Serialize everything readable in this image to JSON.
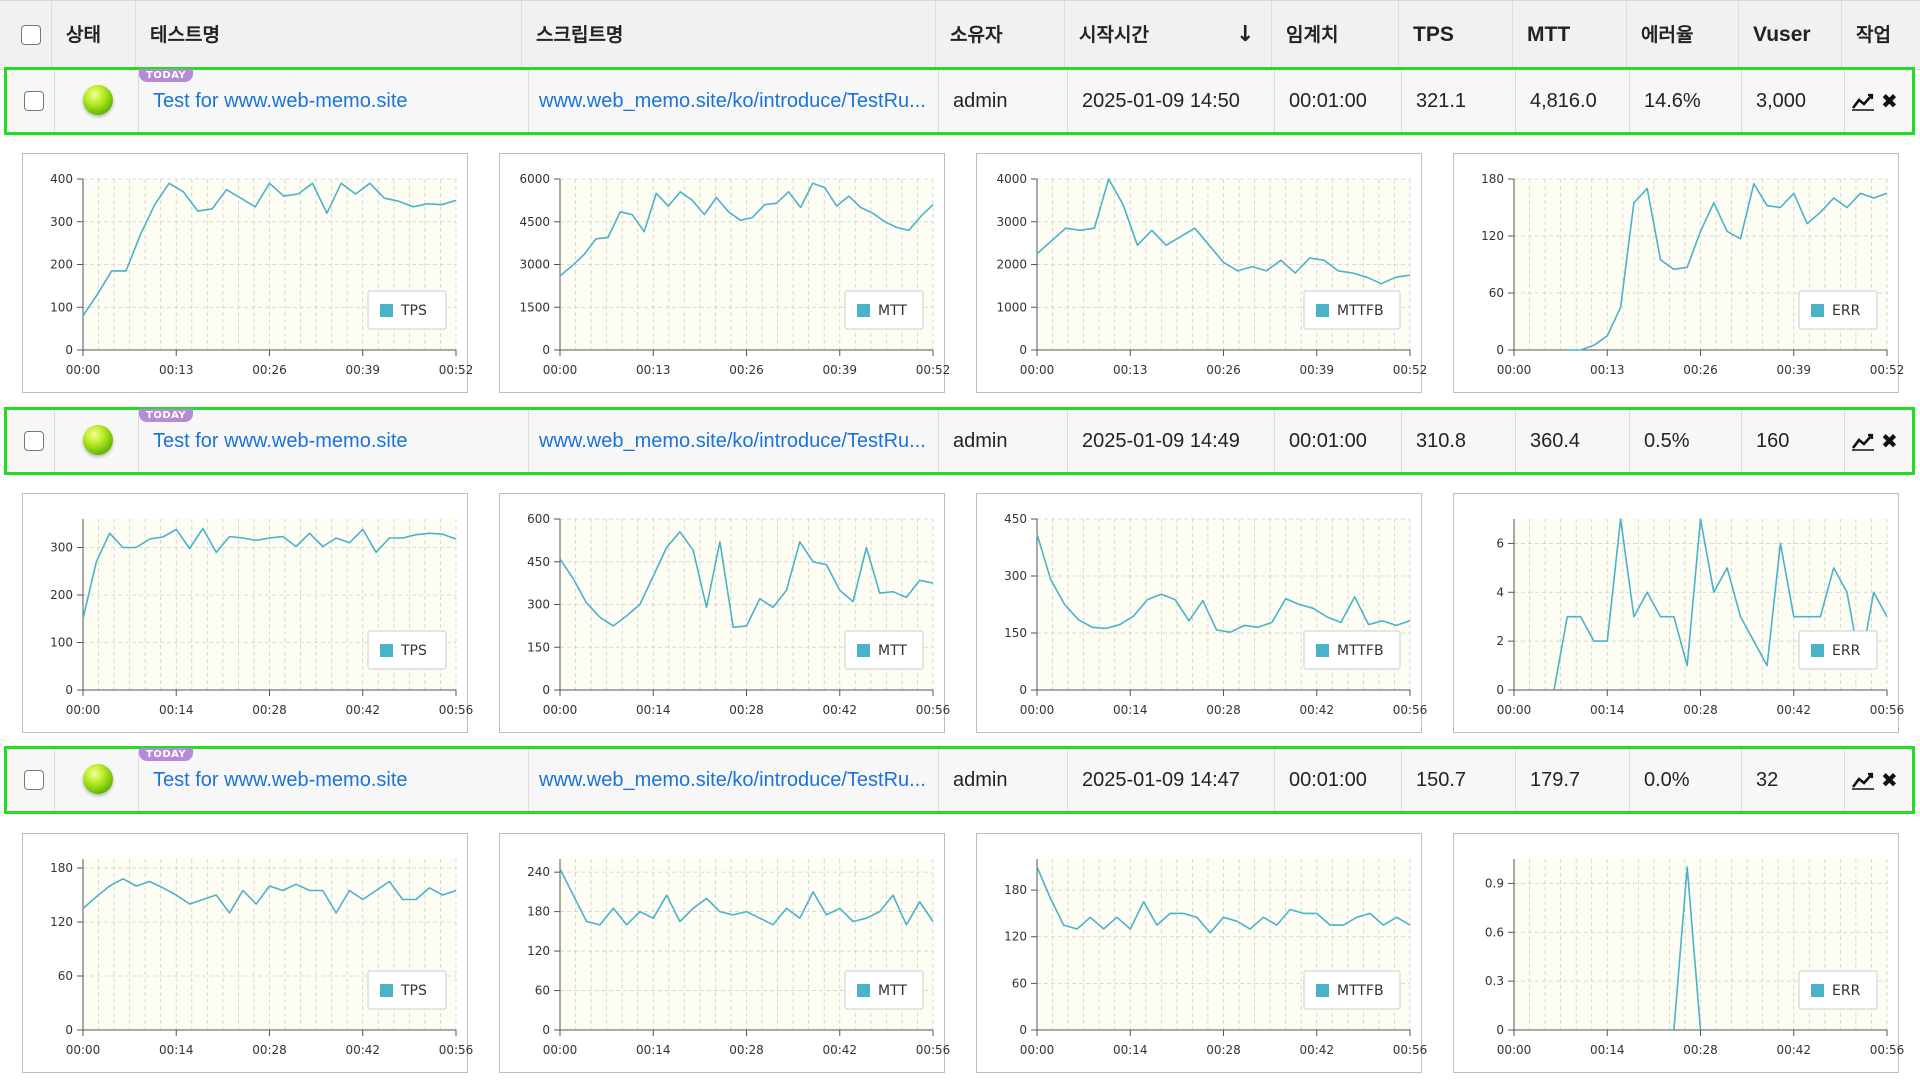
{
  "header": {
    "status": "상태",
    "test_name": "테스트명",
    "script_name": "스크립트명",
    "owner": "소유자",
    "start_time": "시작시간",
    "threshold": "임계치",
    "tps": "TPS",
    "mtt": "MTT",
    "error_rate": "에러율",
    "vuser": "Vuser",
    "action": "작업"
  },
  "icons": {
    "sort": "sort-desc-arrow-icon",
    "chart": "line-chart-icon",
    "delete": "close-x-icon",
    "status": "status-ball-green-icon"
  },
  "colors": {
    "highlight": "#22dd22",
    "link": "#1a73d9",
    "series": "#4ab3c8",
    "today_badge": "#b58ad6"
  },
  "rows": [
    {
      "badge": "TODAY",
      "test_name": "Test for www.web-memo.site",
      "script_name": "www.web_memo.site/ko/introduce/TestRu...",
      "owner": "admin",
      "start_time": "2025-01-09 14:50",
      "threshold": "00:01:00",
      "tps": "321.1",
      "mtt": "4,816.0",
      "error_rate": "14.6%",
      "vuser": "3,000"
    },
    {
      "badge": "TODAY",
      "test_name": "Test for www.web-memo.site",
      "script_name": "www.web_memo.site/ko/introduce/TestRu...",
      "owner": "admin",
      "start_time": "2025-01-09 14:49",
      "threshold": "00:01:00",
      "tps": "310.8",
      "mtt": "360.4",
      "error_rate": "0.5%",
      "vuser": "160"
    },
    {
      "badge": "TODAY",
      "test_name": "Test for www.web-memo.site",
      "script_name": "www.web_memo.site/ko/introduce/TestRu...",
      "owner": "admin",
      "start_time": "2025-01-09 14:47",
      "threshold": "00:01:00",
      "tps": "150.7",
      "mtt": "179.7",
      "error_rate": "0.0%",
      "vuser": "32"
    }
  ],
  "chart_data": [
    {
      "type": "line",
      "series": [
        {
          "name": "TPS",
          "values": [
            80,
            130,
            185,
            185,
            270,
            340,
            390,
            370,
            325,
            330,
            375,
            355,
            335,
            390,
            360,
            365,
            390,
            320,
            390,
            365,
            390,
            355,
            348,
            335,
            342,
            340,
            350
          ]
        }
      ],
      "xticks": [
        "00:00",
        "00:13",
        "00:26",
        "00:39",
        "00:52"
      ],
      "ylim": [
        0,
        400
      ],
      "yticks": [
        "0",
        "100",
        "200",
        "300",
        "400"
      ]
    },
    {
      "type": "line",
      "series": [
        {
          "name": "MTT",
          "values": [
            2600,
            2950,
            3350,
            3900,
            3950,
            4850,
            4750,
            4150,
            5500,
            5050,
            5550,
            5250,
            4750,
            5350,
            4850,
            4550,
            4650,
            5100,
            5150,
            5550,
            5000,
            5850,
            5700,
            5050,
            5400,
            5000,
            4800,
            4500,
            4300,
            4200,
            4700,
            5100
          ]
        }
      ],
      "xticks": [
        "00:00",
        "00:13",
        "00:26",
        "00:39",
        "00:52"
      ],
      "ylim": [
        0,
        6000
      ],
      "yticks": [
        "0",
        "1500",
        "3000",
        "4500",
        "6000"
      ]
    },
    {
      "type": "line",
      "series": [
        {
          "name": "MTTFB",
          "values": [
            2250,
            2550,
            2850,
            2800,
            2850,
            4000,
            3400,
            2450,
            2800,
            2450,
            2650,
            2850,
            2450,
            2050,
            1850,
            1950,
            1850,
            2100,
            1800,
            2150,
            2100,
            1850,
            1800,
            1700,
            1550,
            1700,
            1750
          ]
        }
      ],
      "xticks": [
        "00:00",
        "00:13",
        "00:26",
        "00:39",
        "00:52"
      ],
      "ylim": [
        0,
        4000
      ],
      "yticks": [
        "0",
        "1000",
        "2000",
        "3000",
        "4000"
      ]
    },
    {
      "type": "line",
      "series": [
        {
          "name": "ERR",
          "values": [
            null,
            null,
            null,
            null,
            0,
            0,
            5,
            15,
            45,
            155,
            170,
            95,
            85,
            87,
            125,
            155,
            125,
            117,
            175,
            152,
            150,
            165,
            133,
            145,
            160,
            150,
            165,
            160,
            165
          ]
        }
      ],
      "xticks": [
        "00:00",
        "00:13",
        "00:26",
        "00:39",
        "00:52"
      ],
      "ylim": [
        0,
        180
      ],
      "yticks": [
        "0",
        "60",
        "120",
        "180"
      ]
    },
    {
      "type": "line",
      "series": [
        {
          "name": "TPS",
          "values": [
            150,
            270,
            330,
            300,
            300,
            318,
            322,
            338,
            298,
            340,
            290,
            323,
            320,
            315,
            320,
            323,
            302,
            330,
            302,
            320,
            310,
            338,
            290,
            320,
            320,
            327,
            330,
            328,
            318
          ]
        }
      ],
      "xticks": [
        "00:00",
        "00:14",
        "00:28",
        "00:42",
        "00:56"
      ],
      "ylim": [
        0,
        360
      ],
      "yticks": [
        "0",
        "100",
        "200",
        "300"
      ]
    },
    {
      "type": "line",
      "series": [
        {
          "name": "MTT",
          "values": [
            460,
            390,
            305,
            255,
            225,
            260,
            300,
            400,
            500,
            555,
            490,
            290,
            520,
            220,
            225,
            320,
            290,
            350,
            520,
            450,
            440,
            350,
            310,
            500,
            340,
            345,
            325,
            385,
            375
          ]
        }
      ],
      "xticks": [
        "00:00",
        "00:14",
        "00:28",
        "00:42",
        "00:56"
      ],
      "ylim": [
        0,
        600
      ],
      "yticks": [
        "0",
        "150",
        "300",
        "450",
        "600"
      ]
    },
    {
      "type": "line",
      "series": [
        {
          "name": "MTTFB",
          "values": [
            410,
            290,
            225,
            185,
            165,
            162,
            172,
            195,
            238,
            252,
            238,
            182,
            235,
            158,
            152,
            170,
            165,
            178,
            240,
            225,
            215,
            192,
            178,
            245,
            172,
            182,
            170,
            182
          ]
        }
      ],
      "xticks": [
        "00:00",
        "00:14",
        "00:28",
        "00:42",
        "00:56"
      ],
      "ylim": [
        0,
        450
      ],
      "yticks": [
        "0",
        "150",
        "300",
        "450"
      ]
    },
    {
      "type": "line",
      "series": [
        {
          "name": "ERR",
          "values": [
            null,
            null,
            null,
            0,
            3,
            3,
            2,
            2,
            7,
            3,
            4,
            3,
            3,
            1,
            7,
            4,
            5,
            3,
            2,
            1,
            6,
            3,
            3,
            3,
            5,
            4,
            1,
            4,
            3
          ]
        }
      ],
      "xticks": [
        "00:00",
        "00:14",
        "00:28",
        "00:42",
        "00:56"
      ],
      "ylim": [
        0,
        7
      ],
      "yticks": [
        "0",
        "2",
        "4",
        "6"
      ]
    },
    {
      "type": "line",
      "series": [
        {
          "name": "TPS",
          "values": [
            135,
            148,
            160,
            168,
            160,
            165,
            158,
            150,
            140,
            145,
            150,
            130,
            155,
            140,
            160,
            155,
            162,
            155,
            155,
            130,
            155,
            145,
            155,
            165,
            145,
            145,
            158,
            150,
            155
          ]
        }
      ],
      "xticks": [
        "00:00",
        "00:14",
        "00:28",
        "00:42",
        "00:56"
      ],
      "ylim": [
        0,
        190
      ],
      "yticks": [
        "0",
        "60",
        "120",
        "180"
      ]
    },
    {
      "type": "line",
      "series": [
        {
          "name": "MTT",
          "values": [
            245,
            205,
            165,
            160,
            185,
            160,
            180,
            170,
            205,
            165,
            185,
            200,
            180,
            175,
            180,
            170,
            160,
            185,
            170,
            210,
            175,
            185,
            165,
            170,
            180,
            205,
            160,
            195,
            165
          ]
        }
      ],
      "xticks": [
        "00:00",
        "00:14",
        "00:28",
        "00:42",
        "00:56"
      ],
      "ylim": [
        0,
        260
      ],
      "yticks": [
        "0",
        "60",
        "120",
        "180",
        "240"
      ]
    },
    {
      "type": "line",
      "series": [
        {
          "name": "MTTFB",
          "values": [
            210,
            170,
            135,
            130,
            145,
            130,
            145,
            130,
            165,
            135,
            150,
            150,
            145,
            125,
            145,
            140,
            130,
            145,
            135,
            155,
            150,
            150,
            135,
            135,
            145,
            150,
            135,
            145,
            135
          ]
        }
      ],
      "xticks": [
        "00:00",
        "00:14",
        "00:28",
        "00:42",
        "00:56"
      ],
      "ylim": [
        0,
        220
      ],
      "yticks": [
        "0",
        "60",
        "120",
        "180"
      ]
    },
    {
      "type": "line",
      "series": [
        {
          "name": "ERR",
          "values": [
            null,
            null,
            null,
            null,
            null,
            null,
            null,
            null,
            null,
            null,
            null,
            null,
            0,
            1,
            0,
            null,
            null,
            null,
            null,
            null,
            null,
            null,
            null,
            null,
            null,
            null,
            null,
            null,
            null
          ]
        }
      ],
      "xticks": [
        "00:00",
        "00:14",
        "00:28",
        "00:42",
        "00:56"
      ],
      "ylim": [
        0,
        1.05
      ],
      "yticks": [
        "0",
        "0.3",
        "0.6",
        "0.9"
      ]
    }
  ]
}
